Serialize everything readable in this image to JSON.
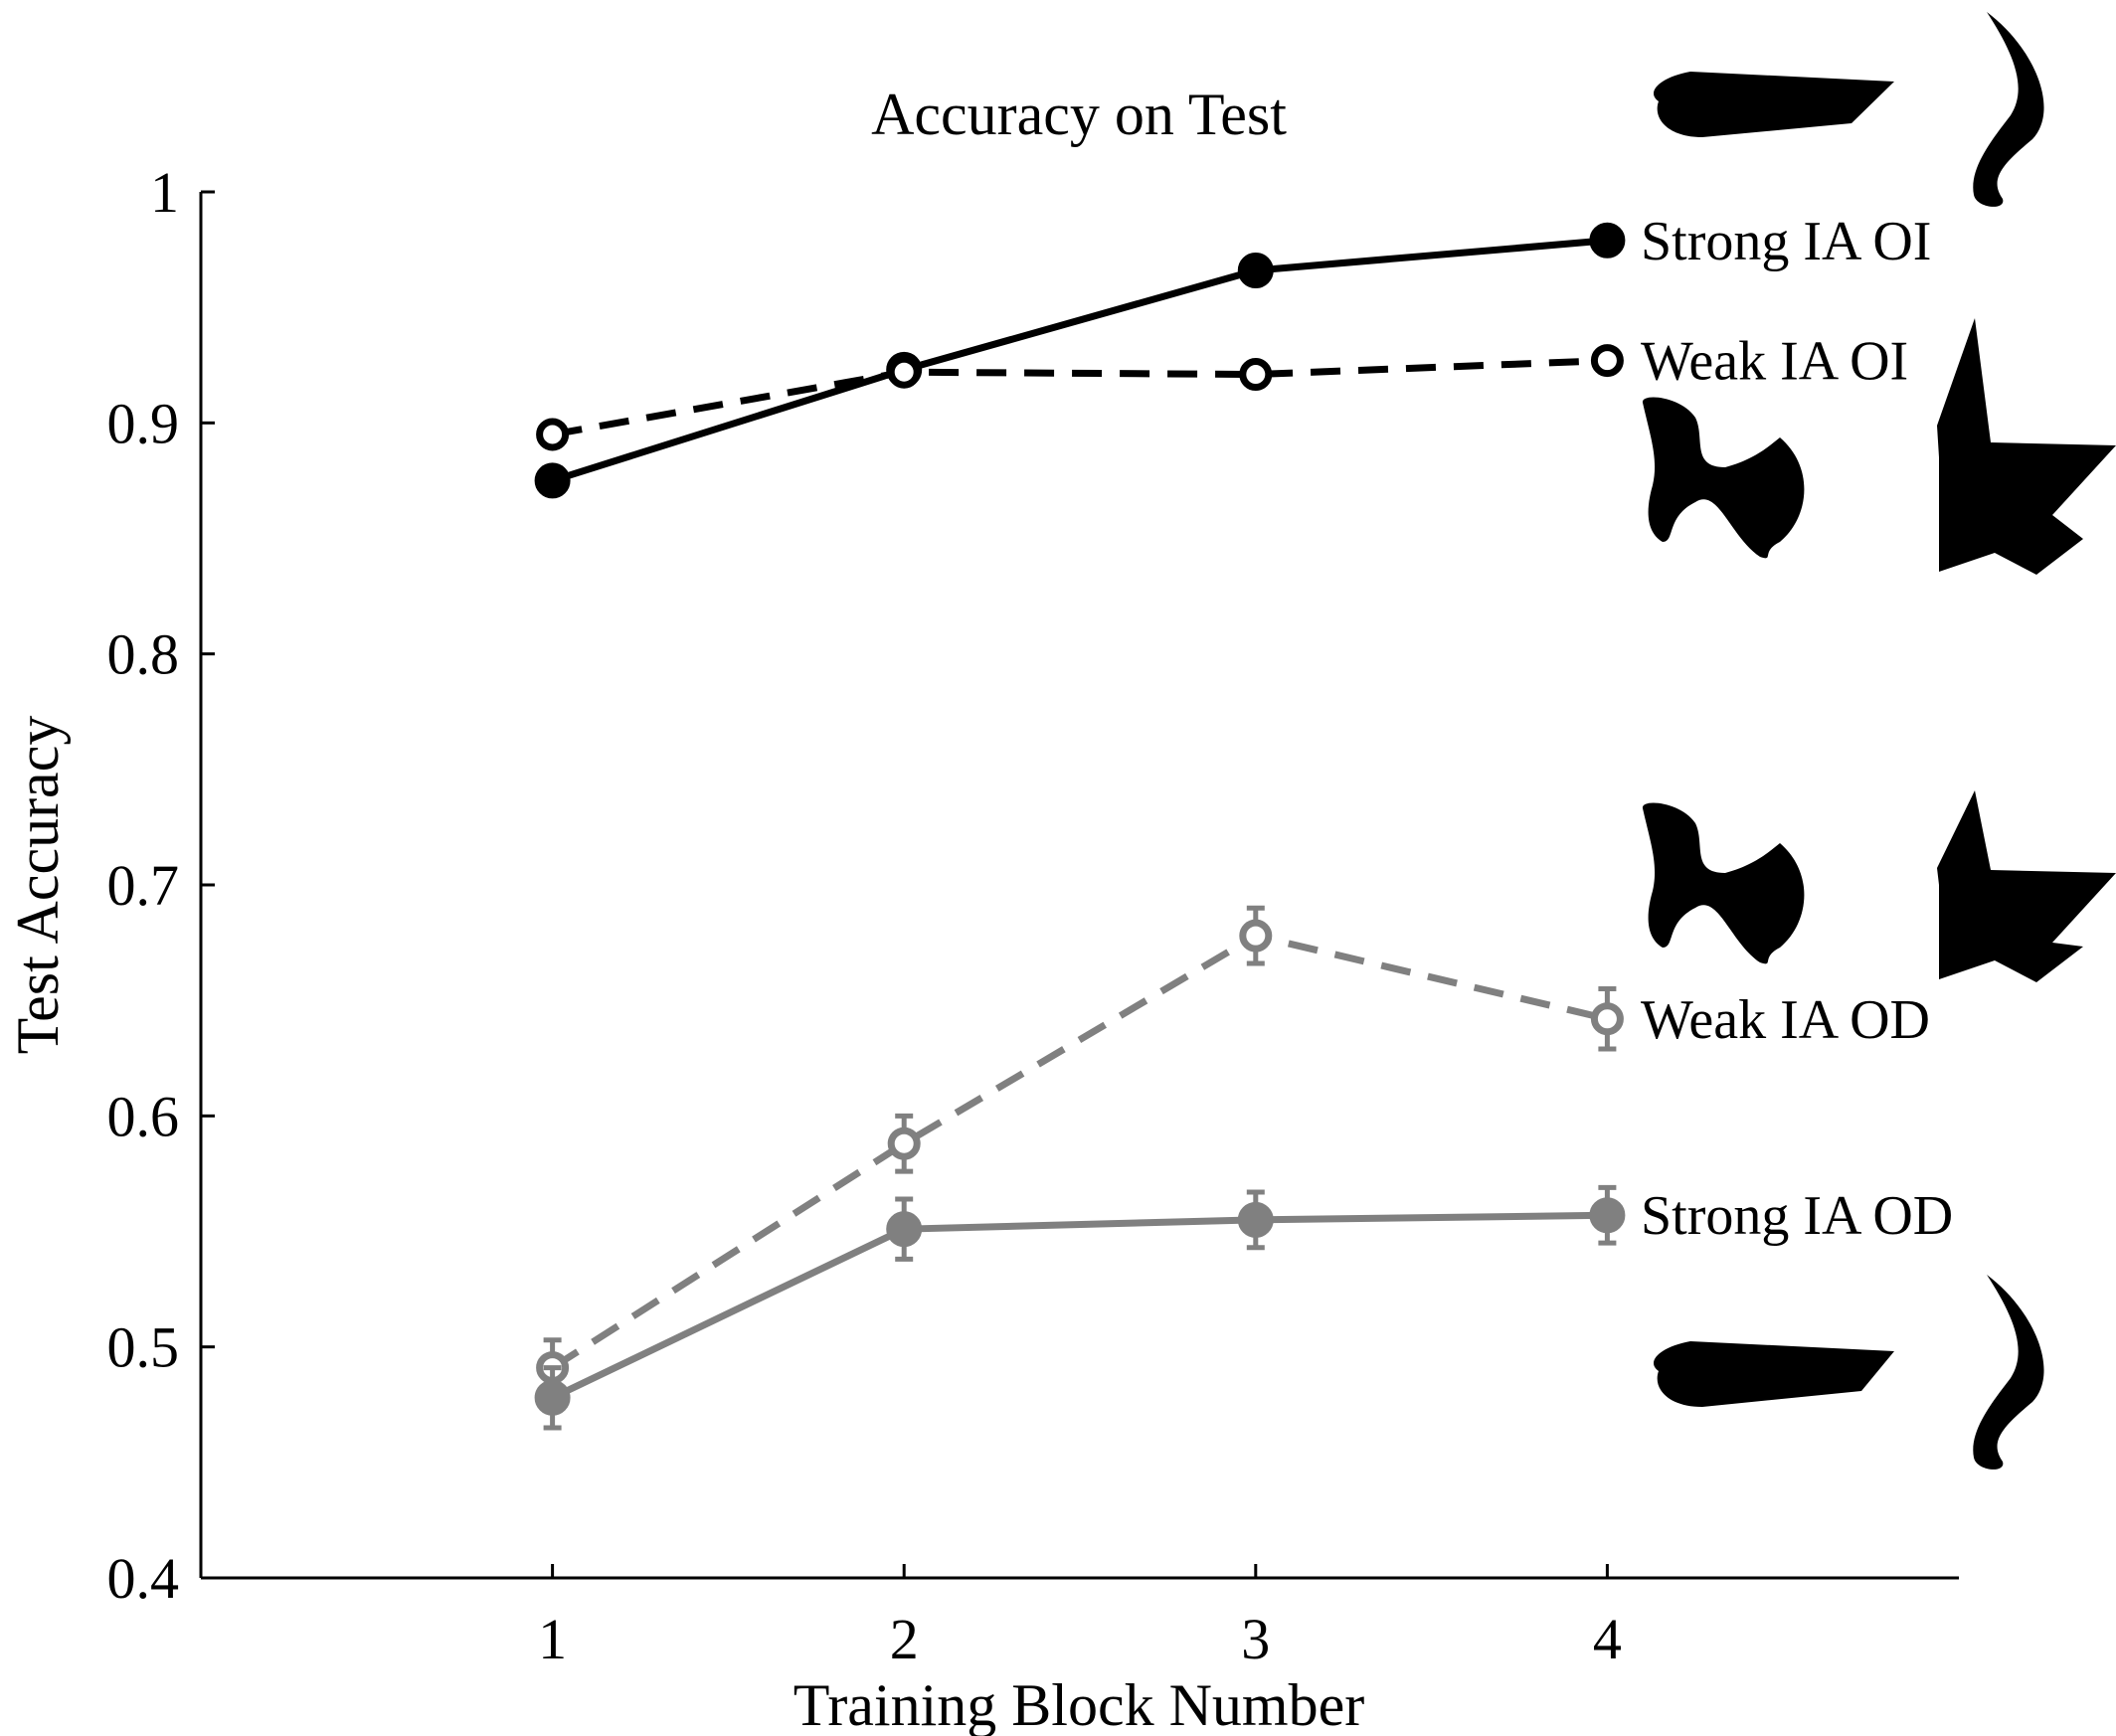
{
  "chart_data": {
    "type": "line",
    "title": "Accuracy on Test",
    "xlabel": "Training Block Number",
    "ylabel": "Test Accuracy",
    "x": [
      1,
      2,
      3,
      4
    ],
    "xlim": [
      0,
      5
    ],
    "ylim": [
      0.4,
      1.0
    ],
    "xticks": [
      "1",
      "2",
      "3",
      "4"
    ],
    "yticks": [
      "0.4",
      "0.5",
      "0.6",
      "0.7",
      "0.8",
      "0.9",
      "1"
    ],
    "grid": false,
    "legend": "inline labels at right end of each line",
    "series": [
      {
        "name": "Strong IA OI",
        "values": [
          0.875,
          0.923,
          0.966,
          0.979
        ],
        "errors": [
          0.003,
          0.003,
          0.003,
          0.003
        ],
        "color": "#000000",
        "style": "solid",
        "marker": "filled"
      },
      {
        "name": "Weak IA OI",
        "values": [
          0.895,
          0.922,
          0.921,
          0.927
        ],
        "errors": [
          0.003,
          0.003,
          0.003,
          0.003
        ],
        "color": "#000000",
        "style": "dashed",
        "marker": "open"
      },
      {
        "name": "Weak IA OD",
        "values": [
          0.491,
          0.588,
          0.678,
          0.642
        ],
        "errors": [
          0.012,
          0.012,
          0.012,
          0.013
        ],
        "color": "#808080",
        "style": "dashed",
        "marker": "open"
      },
      {
        "name": "Strong IA OD",
        "values": [
          0.478,
          0.551,
          0.555,
          0.557
        ],
        "errors": [
          0.013,
          0.013,
          0.012,
          0.012
        ],
        "color": "#808080",
        "style": "solid",
        "marker": "filled"
      }
    ],
    "shape_icons": [
      "bar-shape-icon",
      "curve-shape-icon",
      "blob-shape-icon",
      "star-shape-icon"
    ]
  }
}
